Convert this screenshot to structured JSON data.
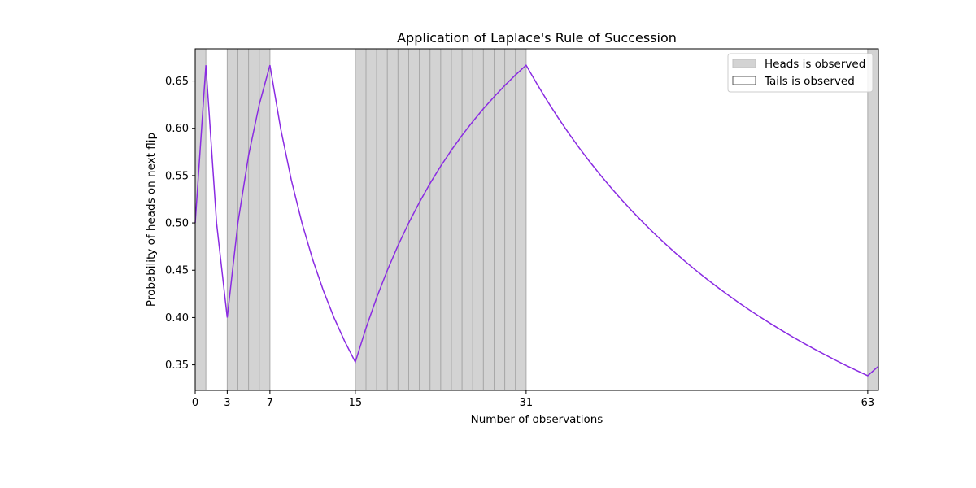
{
  "chart_data": {
    "type": "line",
    "title": "Application of Laplace's Rule of Succession",
    "xlabel": "Number of observations",
    "ylabel": "Probability of heads on next flip",
    "xlim": [
      0,
      63
    ],
    "ylim": [
      0.323,
      0.684
    ],
    "xticks": [
      0,
      3,
      7,
      15,
      31,
      63
    ],
    "yticks": [
      0.35,
      0.4,
      0.45,
      0.5,
      0.55,
      0.6,
      0.65
    ],
    "ytick_labels": [
      "0.35",
      "0.40",
      "0.45",
      "0.50",
      "0.55",
      "0.60",
      "0.65"
    ],
    "grid": false,
    "legend_position": "upper right",
    "legend": [
      {
        "label": "Heads is observed",
        "style": "filled"
      },
      {
        "label": "Tails is observed",
        "style": "outline"
      }
    ],
    "outcomes": [
      "H",
      "T",
      "T",
      "H",
      "H",
      "H",
      "H",
      "T",
      "T",
      "T",
      "T",
      "T",
      "T",
      "T",
      "T",
      "H",
      "H",
      "H",
      "H",
      "H",
      "H",
      "H",
      "H",
      "H",
      "H",
      "H",
      "H",
      "H",
      "H",
      "H",
      "H",
      "T",
      "T",
      "T",
      "T",
      "T",
      "T",
      "T",
      "T",
      "T",
      "T",
      "T",
      "T",
      "T",
      "T",
      "T",
      "T",
      "T",
      "T",
      "T",
      "T",
      "T",
      "T",
      "T",
      "T",
      "T",
      "T",
      "T",
      "T",
      "T",
      "T",
      "T",
      "T",
      "H"
    ],
    "series": [
      {
        "color": "#8a2be2",
        "x": [
          0,
          1,
          2,
          3,
          4,
          5,
          6,
          7,
          8,
          9,
          10,
          11,
          12,
          13,
          14,
          15,
          16,
          17,
          18,
          19,
          20,
          21,
          22,
          23,
          24,
          25,
          26,
          27,
          28,
          29,
          30,
          31,
          32,
          33,
          34,
          35,
          36,
          37,
          38,
          39,
          40,
          41,
          42,
          43,
          44,
          45,
          46,
          47,
          48,
          49,
          50,
          51,
          52,
          53,
          54,
          55,
          56,
          57,
          58,
          59,
          60,
          61,
          62,
          63,
          64
        ],
        "y": [
          0.5,
          0.6667,
          0.5,
          0.4,
          0.5,
          0.5714,
          0.625,
          0.6667,
          0.6,
          0.5455,
          0.5,
          0.4615,
          0.4286,
          0.4,
          0.375,
          0.3529,
          0.3889,
          0.4211,
          0.45,
          0.4762,
          0.5,
          0.5217,
          0.5417,
          0.56,
          0.5769,
          0.5926,
          0.6071,
          0.6207,
          0.6333,
          0.6452,
          0.6563,
          0.6667,
          0.6471,
          0.6286,
          0.6111,
          0.5946,
          0.5789,
          0.5641,
          0.55,
          0.5366,
          0.5238,
          0.5116,
          0.5,
          0.4889,
          0.4783,
          0.4681,
          0.4583,
          0.449,
          0.44,
          0.4314,
          0.4231,
          0.4151,
          0.4074,
          0.4,
          0.3929,
          0.386,
          0.3793,
          0.3729,
          0.3667,
          0.3607,
          0.3548,
          0.3492,
          0.3438,
          0.3385,
          0.3485
        ]
      }
    ]
  }
}
